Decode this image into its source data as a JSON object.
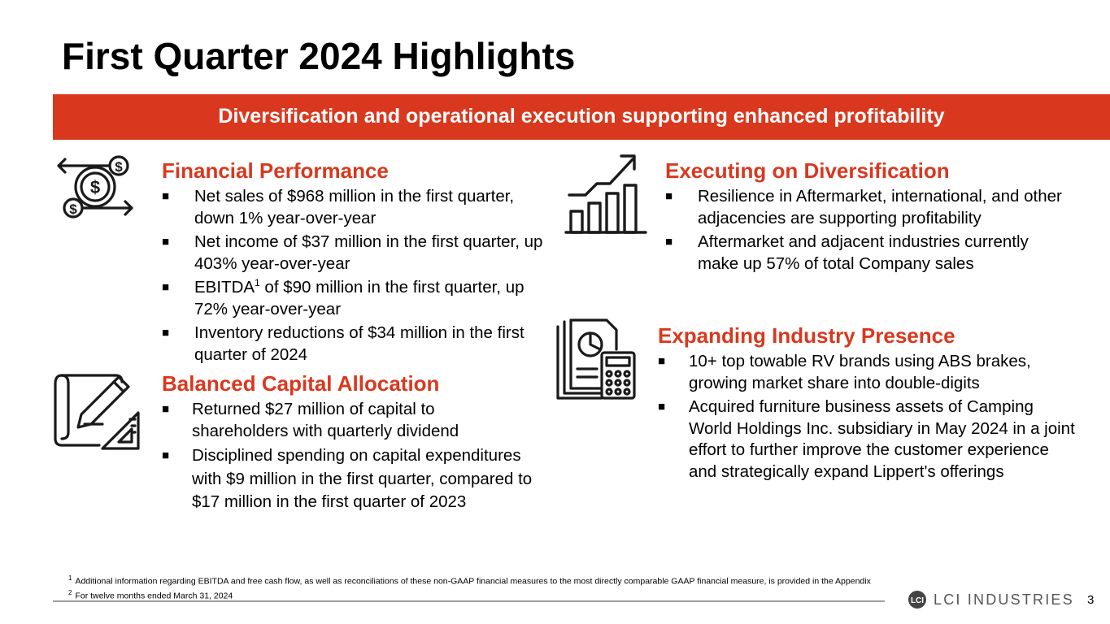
{
  "title": "First Quarter 2024 Highlights",
  "banner": "Diversification and operational execution supporting enhanced profitability",
  "colors": {
    "accent": "#d9381e",
    "icon": "#1a1a1a"
  },
  "sections": {
    "financial": {
      "title": "Financial Performance",
      "icon": "money-exchange-icon",
      "bullets": [
        {
          "text": "Net sales of $968 million in the first quarter, down 1% year-over-year"
        },
        {
          "text": "Net income of $37 million in the first quarter, up 403% year-over-year"
        },
        {
          "pre": "EBITDA",
          "sup": "1",
          "post": " of $90 million in the first quarter, up 72% year-over-year"
        },
        {
          "text": "Inventory reductions of $34 million in the first quarter of 2024"
        }
      ]
    },
    "capital": {
      "title": "Balanced Capital Allocation",
      "icon": "blueprint-pencil-icon",
      "bullets": [
        {
          "text": "Returned $27 million of capital to shareholders with quarterly dividend"
        },
        {
          "text": "Disciplined spending on capital expenditures with $9 million in the first quarter, compared to $17 million in the first quarter of 2023"
        }
      ]
    },
    "diversification": {
      "title": "Executing on Diversification",
      "icon": "growth-chart-icon",
      "bullets": [
        {
          "text": "Resilience in Aftermarket, international, and other adjacencies are supporting profitability"
        },
        {
          "text": "Aftermarket and adjacent industries currently make up 57% of total Company sales"
        }
      ]
    },
    "industry": {
      "title": "Expanding Industry Presence",
      "icon": "report-calculator-icon",
      "bullets": [
        {
          "text": "10+ top towable RV brands using ABS brakes, growing market share into double-digits"
        },
        {
          "text": "Acquired furniture business assets of Camping World Holdings Inc. subsidiary in May 2024 in a joint effort to further improve the customer experience and strategically expand Lippert's offerings"
        }
      ]
    }
  },
  "bullet_char": "■",
  "footnotes": [
    {
      "num": "1",
      "text": "Additional information regarding EBITDA and free cash flow, as well as reconciliations of these non-GAAP financial measures to the most directly comparable GAAP financial measure, is provided in the Appendix"
    },
    {
      "num": "2",
      "text": "For twelve months ended March 31, 2024"
    }
  ],
  "logo": {
    "text": "LCI INDUSTRIES",
    "mark": "LCI"
  },
  "page_number": "3"
}
